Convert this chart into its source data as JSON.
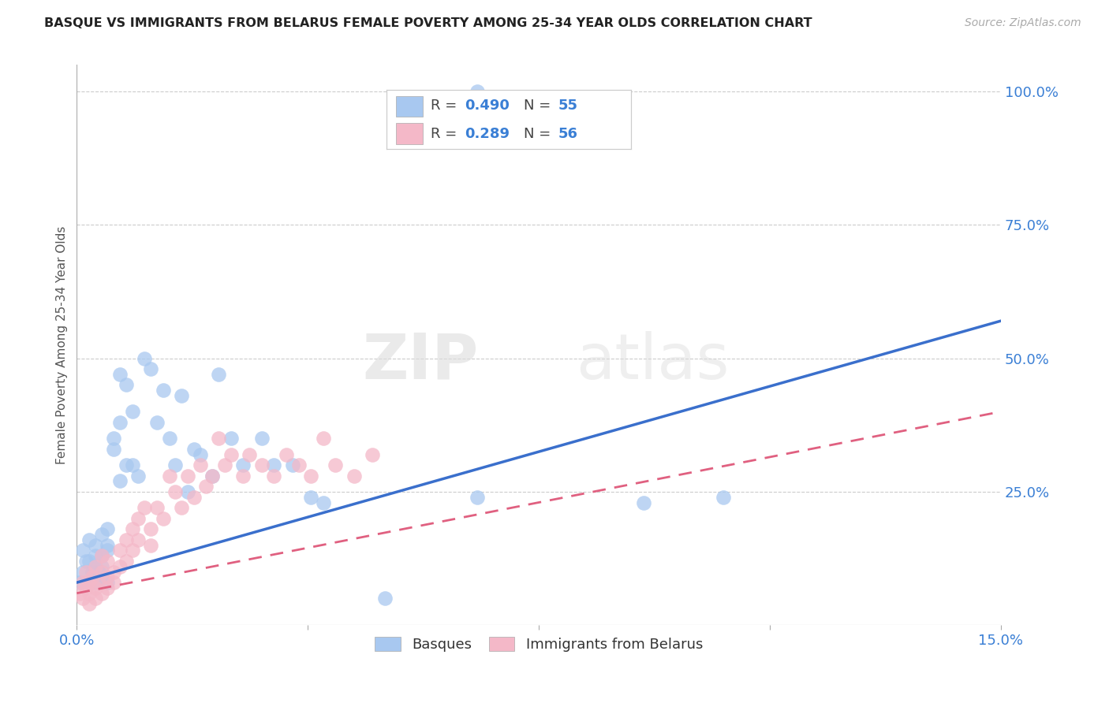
{
  "title": "BASQUE VS IMMIGRANTS FROM BELARUS FEMALE POVERTY AMONG 25-34 YEAR OLDS CORRELATION CHART",
  "source": "Source: ZipAtlas.com",
  "ylabel": "Female Poverty Among 25-34 Year Olds",
  "xlim": [
    0.0,
    0.15
  ],
  "ylim": [
    0.0,
    1.05
  ],
  "xticks": [
    0.0,
    0.0375,
    0.075,
    0.1125,
    0.15
  ],
  "xticklabels": [
    "0.0%",
    "",
    "",
    "",
    "15.0%"
  ],
  "yticks_right": [
    0.0,
    0.25,
    0.5,
    0.75,
    1.0
  ],
  "ytickslabels_right": [
    "",
    "25.0%",
    "50.0%",
    "75.0%",
    "100.0%"
  ],
  "grid_yticks": [
    0.25,
    0.5,
    0.75,
    1.0
  ],
  "basque_R": 0.49,
  "basque_N": 55,
  "belarus_R": 0.289,
  "belarus_N": 56,
  "basque_color": "#a8c8f0",
  "basque_line_color": "#3a6fcc",
  "belarus_color": "#f4b8c8",
  "belarus_line_color": "#e06080",
  "watermark_zip": "ZIP",
  "watermark_atlas": "atlas",
  "legend_label1": "Basques",
  "legend_label2": "Immigrants from Belarus",
  "basque_line_x0": 0.0,
  "basque_line_y0": 0.08,
  "basque_line_x1": 0.15,
  "basque_line_y1": 0.57,
  "belarus_line_x0": 0.0,
  "belarus_line_y0": 0.06,
  "belarus_line_x1": 0.15,
  "belarus_line_y1": 0.4,
  "basque_x": [
    0.0005,
    0.001,
    0.001,
    0.0015,
    0.002,
    0.002,
    0.002,
    0.0025,
    0.003,
    0.003,
    0.003,
    0.003,
    0.0035,
    0.004,
    0.004,
    0.004,
    0.004,
    0.005,
    0.005,
    0.005,
    0.005,
    0.006,
    0.006,
    0.007,
    0.007,
    0.007,
    0.008,
    0.008,
    0.009,
    0.009,
    0.01,
    0.011,
    0.012,
    0.013,
    0.014,
    0.015,
    0.016,
    0.017,
    0.018,
    0.019,
    0.02,
    0.022,
    0.023,
    0.025,
    0.027,
    0.03,
    0.032,
    0.035,
    0.038,
    0.04,
    0.05,
    0.065,
    0.092,
    0.105,
    0.065
  ],
  "basque_y": [
    0.08,
    0.1,
    0.14,
    0.12,
    0.08,
    0.12,
    0.16,
    0.1,
    0.08,
    0.13,
    0.11,
    0.15,
    0.1,
    0.09,
    0.13,
    0.17,
    0.11,
    0.15,
    0.08,
    0.18,
    0.14,
    0.35,
    0.33,
    0.27,
    0.47,
    0.38,
    0.3,
    0.45,
    0.3,
    0.4,
    0.28,
    0.5,
    0.48,
    0.38,
    0.44,
    0.35,
    0.3,
    0.43,
    0.25,
    0.33,
    0.32,
    0.28,
    0.47,
    0.35,
    0.3,
    0.35,
    0.3,
    0.3,
    0.24,
    0.23,
    0.05,
    0.24,
    0.23,
    0.24,
    1.0
  ],
  "belarus_x": [
    0.0005,
    0.001,
    0.001,
    0.0015,
    0.0015,
    0.002,
    0.002,
    0.002,
    0.0025,
    0.003,
    0.003,
    0.003,
    0.0035,
    0.004,
    0.004,
    0.004,
    0.005,
    0.005,
    0.005,
    0.006,
    0.006,
    0.007,
    0.007,
    0.008,
    0.008,
    0.009,
    0.009,
    0.01,
    0.01,
    0.011,
    0.012,
    0.012,
    0.013,
    0.014,
    0.015,
    0.016,
    0.017,
    0.018,
    0.019,
    0.02,
    0.021,
    0.022,
    0.023,
    0.024,
    0.025,
    0.027,
    0.028,
    0.03,
    0.032,
    0.034,
    0.036,
    0.038,
    0.04,
    0.042,
    0.045,
    0.048
  ],
  "belarus_y": [
    0.06,
    0.08,
    0.05,
    0.1,
    0.07,
    0.08,
    0.06,
    0.04,
    0.09,
    0.07,
    0.11,
    0.05,
    0.08,
    0.06,
    0.1,
    0.13,
    0.09,
    0.07,
    0.12,
    0.1,
    0.08,
    0.14,
    0.11,
    0.16,
    0.12,
    0.18,
    0.14,
    0.2,
    0.16,
    0.22,
    0.18,
    0.15,
    0.22,
    0.2,
    0.28,
    0.25,
    0.22,
    0.28,
    0.24,
    0.3,
    0.26,
    0.28,
    0.35,
    0.3,
    0.32,
    0.28,
    0.32,
    0.3,
    0.28,
    0.32,
    0.3,
    0.28,
    0.35,
    0.3,
    0.28,
    0.32
  ]
}
